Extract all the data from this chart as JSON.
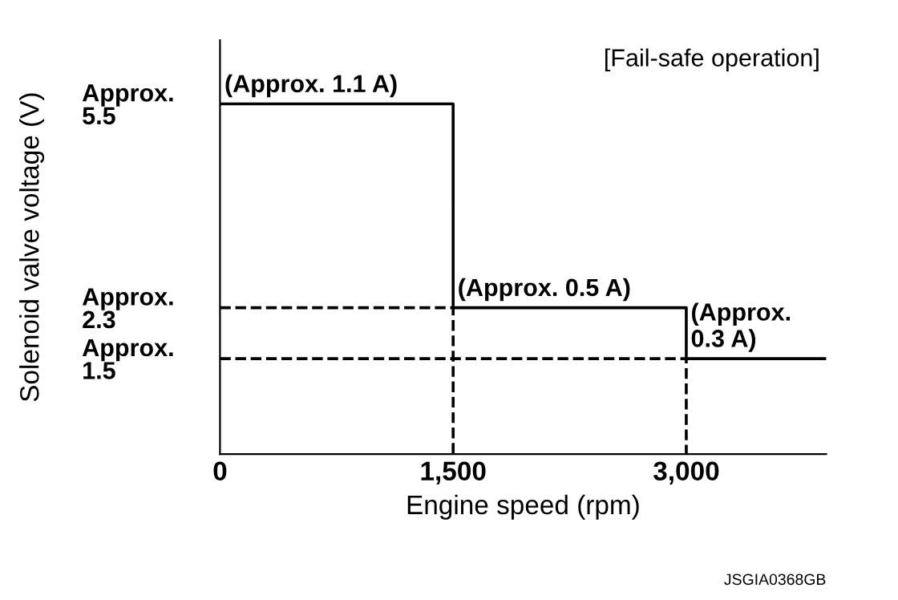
{
  "chart_data": {
    "type": "step",
    "xlabel": "Engine speed (rpm)",
    "ylabel": "Solenoid valve voltage (V)",
    "xlim": [
      0,
      3900
    ],
    "xticks": [
      0,
      {
        "value": 1500,
        "label": "1,500"
      },
      {
        "value": 3000,
        "label": "3,000"
      }
    ],
    "ylim": [
      0,
      6.5
    ],
    "yticks": [
      {
        "value": 1.5,
        "label": "Approx.\n1.5"
      },
      {
        "value": 2.3,
        "label": "Approx.\n2.3"
      },
      {
        "value": 5.5,
        "label": "Approx.\n5.5"
      }
    ],
    "grid": false,
    "legend": false,
    "series": [
      {
        "color": "#000000",
        "line_style": "solid",
        "x": [
          0,
          1500,
          3000,
          3900
        ],
        "values": [
          5.5,
          2.3,
          1.5,
          1.5
        ]
      },
      {
        "type": "line",
        "color": "#000000",
        "line_style": "dashed",
        "x": [
          0,
          1500,
          1500
        ],
        "values": [
          2.3,
          2.3,
          0
        ]
      },
      {
        "type": "line",
        "color": "#000000",
        "line_style": "dashed",
        "x": [
          0,
          3000,
          3000
        ],
        "values": [
          1.5,
          1.5,
          0
        ]
      }
    ],
    "annotations": [
      {
        "text": "(Approx. 1.1 A)",
        "x": 0,
        "y": 5.5
      },
      {
        "text": "(Approx. 0.5 A)",
        "x": 1500,
        "y": 2.3
      },
      {
        "text": "(Approx.\n0.3 A)",
        "x": 3000,
        "y": 1.5
      },
      "[Fail-safe operation]",
      "JSGIA0368GB"
    ]
  }
}
